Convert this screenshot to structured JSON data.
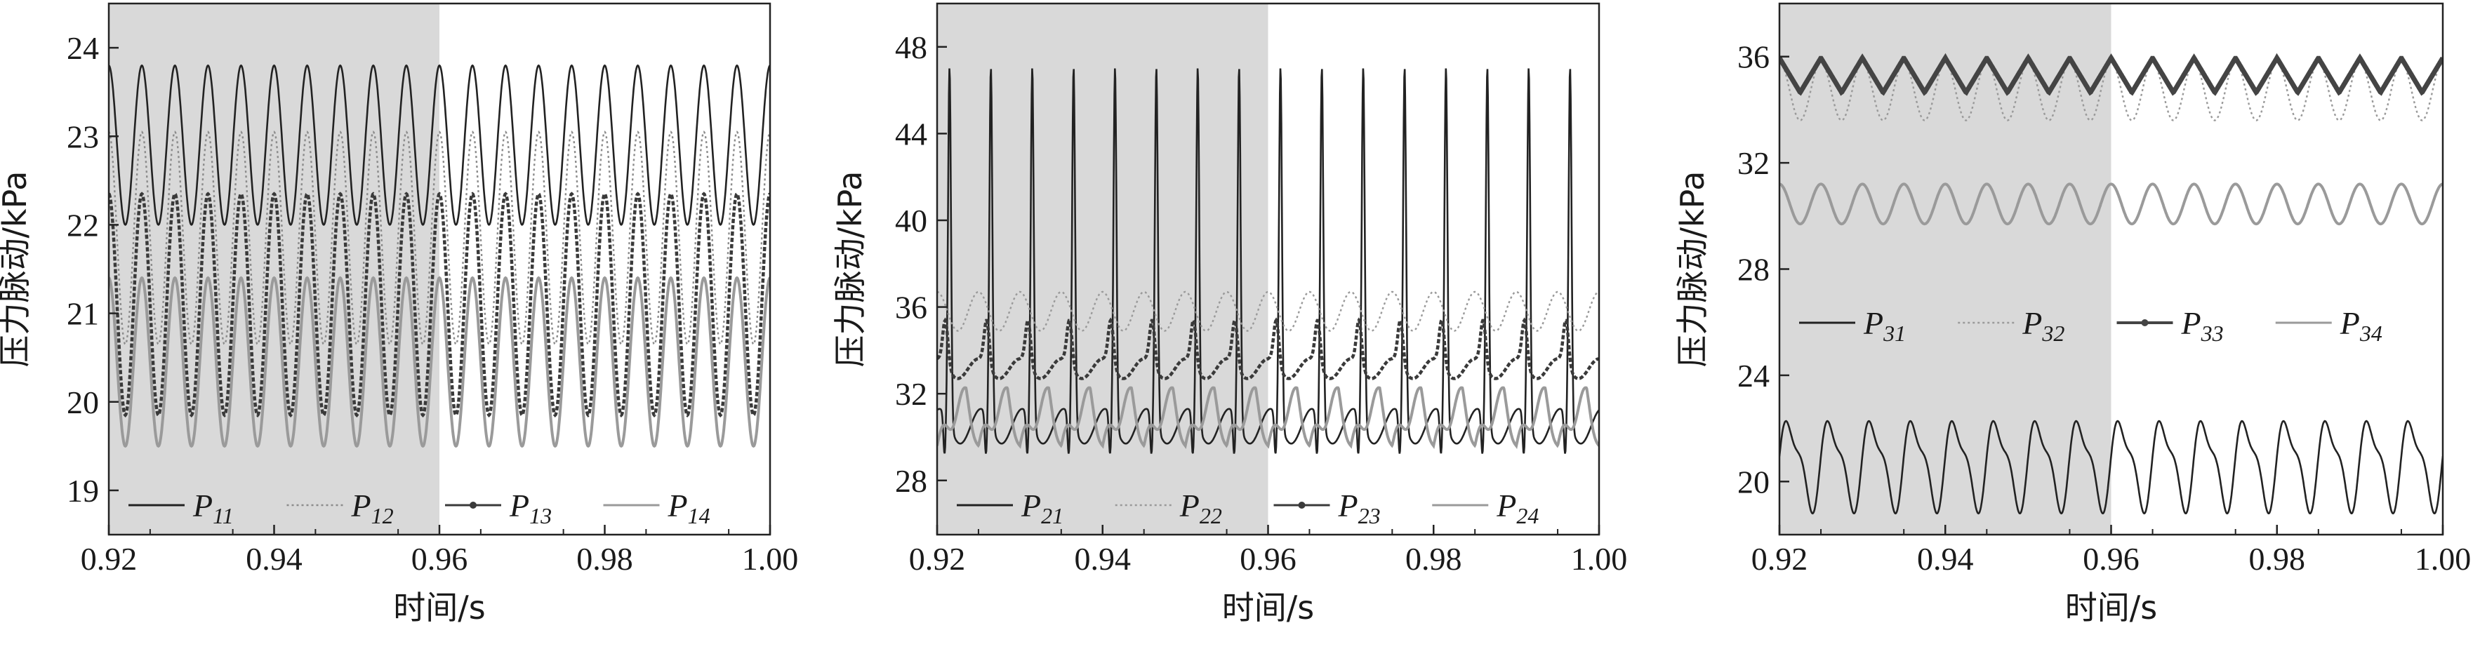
{
  "chart_data": [
    {
      "type": "line",
      "xlabel": "时间/s",
      "ylabel": "压力脉动/kPa",
      "xlim": [
        0.92,
        1.0
      ],
      "ylim": [
        18.5,
        24.5
      ],
      "x_ticks": [
        "0.92",
        "0.94",
        "0.96",
        "0.98",
        "1.00"
      ],
      "y_ticks": [
        "19",
        "20",
        "21",
        "22",
        "23",
        "24"
      ],
      "y_tick_values": [
        19,
        20,
        21,
        22,
        23,
        24
      ],
      "shaded_region": [
        0.92,
        0.96
      ],
      "legend_position": "bottom",
      "series": [
        {
          "name": "P",
          "sub": "11",
          "style": "solid",
          "color": "#222222",
          "shape": "sine",
          "mean": 22.9,
          "amp": 0.9,
          "freq_hz": 250
        },
        {
          "name": "P",
          "sub": "12",
          "style": "dotted",
          "color": "#8c8c8c",
          "shape": "sine",
          "mean": 21.85,
          "amp": 1.2,
          "freq_hz": 250
        },
        {
          "name": "P",
          "sub": "13",
          "style": "marker",
          "color": "#3a3a3a",
          "shape": "sine",
          "mean": 21.1,
          "amp": 1.25,
          "freq_hz": 250
        },
        {
          "name": "P",
          "sub": "14",
          "style": "gray",
          "color": "#9a9a9a",
          "shape": "sine",
          "mean": 20.45,
          "amp": 0.95,
          "freq_hz": 250
        }
      ]
    },
    {
      "type": "line",
      "xlabel": "时间/s",
      "ylabel": "压力脉动/kPa",
      "xlim": [
        0.92,
        1.0
      ],
      "ylim": [
        25.5,
        50
      ],
      "x_ticks": [
        "0.92",
        "0.94",
        "0.96",
        "0.98",
        "1.00"
      ],
      "y_ticks": [
        "28",
        "32",
        "36",
        "40",
        "44",
        "48"
      ],
      "y_tick_values": [
        28,
        32,
        36,
        40,
        44,
        48
      ],
      "shaded_region": [
        0.92,
        0.96
      ],
      "legend_position": "bottom",
      "series": [
        {
          "name": "P",
          "sub": "21",
          "style": "solid",
          "color": "#222222",
          "shape": "spike",
          "base": 30.5,
          "peak": 47.0,
          "trough": 28.6,
          "freq_hz": 200
        },
        {
          "name": "P",
          "sub": "22",
          "style": "dotted",
          "color": "#9a9a9a",
          "shape": "sine",
          "mean": 35.8,
          "amp": 0.9,
          "freq_hz": 200
        },
        {
          "name": "P",
          "sub": "23",
          "style": "marker",
          "color": "#3a3a3a",
          "shape": "bump",
          "mean": 34.0,
          "amp": 1.3,
          "freq_hz": 200
        },
        {
          "name": "P",
          "sub": "24",
          "style": "gray",
          "color": "#9a9a9a",
          "shape": "saw",
          "mean": 30.8,
          "amp": 1.5,
          "freq_hz": 200
        }
      ]
    },
    {
      "type": "line",
      "xlabel": "时间/s",
      "ylabel": "压力脉动/kPa",
      "xlim": [
        0.92,
        1.0
      ],
      "ylim": [
        18,
        38
      ],
      "x_ticks": [
        "0.92",
        "0.94",
        "0.96",
        "0.98",
        "1.00"
      ],
      "y_ticks": [
        "20",
        "24",
        "28",
        "32",
        "36"
      ],
      "y_tick_values": [
        20,
        24,
        28,
        32,
        36
      ],
      "shaded_region": [
        0.92,
        0.96
      ],
      "legend_position": "center",
      "series": [
        {
          "name": "P",
          "sub": "31",
          "style": "solid",
          "color": "#222222",
          "shape": "skew",
          "mean": 20.7,
          "amp": 1.5,
          "freq_hz": 200
        },
        {
          "name": "P",
          "sub": "32",
          "style": "dotted",
          "color": "#9a9a9a",
          "shape": "sine",
          "mean": 34.7,
          "amp": 1.1,
          "freq_hz": 200
        },
        {
          "name": "P",
          "sub": "33",
          "style": "thick",
          "color": "#444444",
          "shape": "tri",
          "mean": 35.3,
          "amp": 0.65,
          "freq_hz": 200
        },
        {
          "name": "P",
          "sub": "34",
          "style": "gray",
          "color": "#9a9a9a",
          "shape": "sine",
          "mean": 30.45,
          "amp": 0.75,
          "freq_hz": 200
        }
      ]
    }
  ]
}
